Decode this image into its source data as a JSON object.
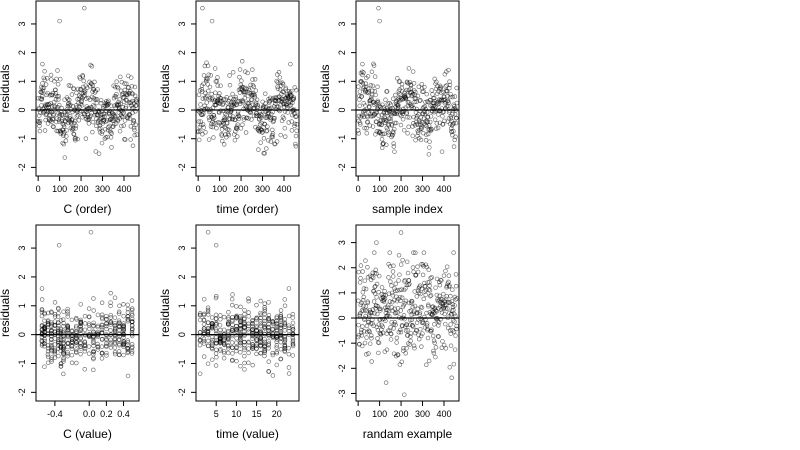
{
  "chart_data": [
    {
      "type": "scatter",
      "xlabel": "C (order)",
      "ylabel": "residuals",
      "xlim": [
        -10,
        470
      ],
      "ylim": [
        -2.3,
        3.8
      ],
      "xticks": [
        0,
        100,
        200,
        300,
        400
      ],
      "xtick_labels": [
        "0",
        "100",
        "200",
        "300",
        "400"
      ],
      "yticks": [
        -2,
        -1,
        0,
        1,
        2,
        3
      ],
      "ytick_labels": [
        "-2",
        "-1",
        "0",
        "1",
        "2",
        "3"
      ],
      "reference_line_y": 0,
      "x_domain": [
        0,
        460
      ],
      "n": 460,
      "seed": 11,
      "style": "order",
      "outliers": [
        [
          100,
          3.1
        ],
        [
          215,
          3.55
        ],
        [
          20,
          1.6
        ]
      ]
    },
    {
      "type": "scatter",
      "xlabel": "time (order)",
      "ylabel": "residuals",
      "xlim": [
        -10,
        470
      ],
      "ylim": [
        -2.3,
        3.8
      ],
      "xticks": [
        0,
        100,
        200,
        300,
        400
      ],
      "xtick_labels": [
        "0",
        "100",
        "200",
        "300",
        "400"
      ],
      "yticks": [
        -2,
        -1,
        0,
        1,
        2,
        3
      ],
      "ytick_labels": [
        "-2",
        "-1",
        "0",
        "1",
        "2",
        "3"
      ],
      "reference_line_y": 0,
      "x_domain": [
        0,
        460
      ],
      "n": 460,
      "seed": 23,
      "style": "order",
      "outliers": [
        [
          20,
          3.55
        ],
        [
          65,
          3.1
        ],
        [
          430,
          1.6
        ]
      ]
    },
    {
      "type": "scatter",
      "xlabel": "sample index",
      "ylabel": "residuals",
      "xlim": [
        -10,
        470
      ],
      "ylim": [
        -2.3,
        3.8
      ],
      "xticks": [
        0,
        100,
        200,
        300,
        400
      ],
      "xtick_labels": [
        "0",
        "100",
        "200",
        "300",
        "400"
      ],
      "yticks": [
        -2,
        -1,
        0,
        1,
        2,
        3
      ],
      "ytick_labels": [
        "-2",
        "-1",
        "0",
        "1",
        "2",
        "3"
      ],
      "reference_line_y": 0,
      "x_domain": [
        0,
        460
      ],
      "n": 460,
      "seed": 37,
      "style": "order",
      "outliers": [
        [
          95,
          3.55
        ],
        [
          100,
          3.1
        ],
        [
          20,
          1.6
        ]
      ]
    },
    {
      "type": "scatter",
      "xlabel": "C (value)",
      "ylabel": "residuals",
      "xlim": [
        -0.62,
        0.58
      ],
      "ylim": [
        -2.3,
        3.8
      ],
      "xticks": [
        -0.4,
        0.0,
        0.2,
        0.4
      ],
      "xtick_labels": [
        "-0.4",
        "0.0",
        "0.2",
        "0.4"
      ],
      "yticks": [
        -2,
        -1,
        0,
        1,
        2,
        3
      ],
      "ytick_labels": [
        "-2",
        "-1",
        "0",
        "1",
        "2",
        "3"
      ],
      "reference_line_y": 0,
      "n": 460,
      "seed": 41,
      "style": "columns",
      "column_values": [
        -0.55,
        -0.52,
        -0.48,
        -0.44,
        -0.4,
        -0.36,
        -0.33,
        -0.3,
        -0.25,
        -0.2,
        -0.15,
        -0.1,
        -0.05,
        0.0,
        0.05,
        0.1,
        0.15,
        0.2,
        0.25,
        0.3,
        0.35,
        0.4,
        0.45,
        0.5
      ],
      "outliers": [
        [
          -0.35,
          3.1
        ],
        [
          0.02,
          3.55
        ],
        [
          -0.55,
          1.6
        ]
      ]
    },
    {
      "type": "scatter",
      "xlabel": "time (value)",
      "ylabel": "residuals",
      "xlim": [
        0,
        25.5
      ],
      "ylim": [
        -2.3,
        3.8
      ],
      "xticks": [
        5,
        10,
        15,
        20
      ],
      "xtick_labels": [
        "5",
        "10",
        "15",
        "20"
      ],
      "yticks": [
        -2,
        -1,
        0,
        1,
        2,
        3
      ],
      "ytick_labels": [
        "-2",
        "-1",
        "0",
        "1",
        "2",
        "3"
      ],
      "reference_line_y": 0,
      "n": 460,
      "seed": 53,
      "style": "columns",
      "column_values": [
        1,
        2,
        3,
        4,
        5,
        6,
        7,
        8,
        9,
        10,
        11,
        12,
        13,
        14,
        15,
        16,
        17,
        18,
        19,
        20,
        21,
        22,
        23,
        24
      ],
      "outliers": [
        [
          3,
          3.55
        ],
        [
          5,
          3.1
        ],
        [
          23,
          1.6
        ]
      ]
    },
    {
      "type": "scatter",
      "xlabel": "randam example",
      "ylabel": "residuals",
      "xlim": [
        -10,
        470
      ],
      "ylim": [
        -3.3,
        3.7
      ],
      "xticks": [
        0,
        100,
        200,
        300,
        400
      ],
      "xtick_labels": [
        "0",
        "100",
        "200",
        "300",
        "400"
      ],
      "yticks": [
        -3,
        -2,
        -1,
        0,
        1,
        2,
        3
      ],
      "ytick_labels": [
        "-3",
        "-2",
        "-1",
        "0",
        "1",
        "2",
        "3"
      ],
      "reference_line_y": 0,
      "x_domain": [
        0,
        460
      ],
      "n": 460,
      "seed": 67,
      "style": "random",
      "outliers": [
        [
          200,
          3.4
        ],
        [
          85,
          3.0
        ],
        [
          215,
          -3.05
        ]
      ]
    }
  ]
}
